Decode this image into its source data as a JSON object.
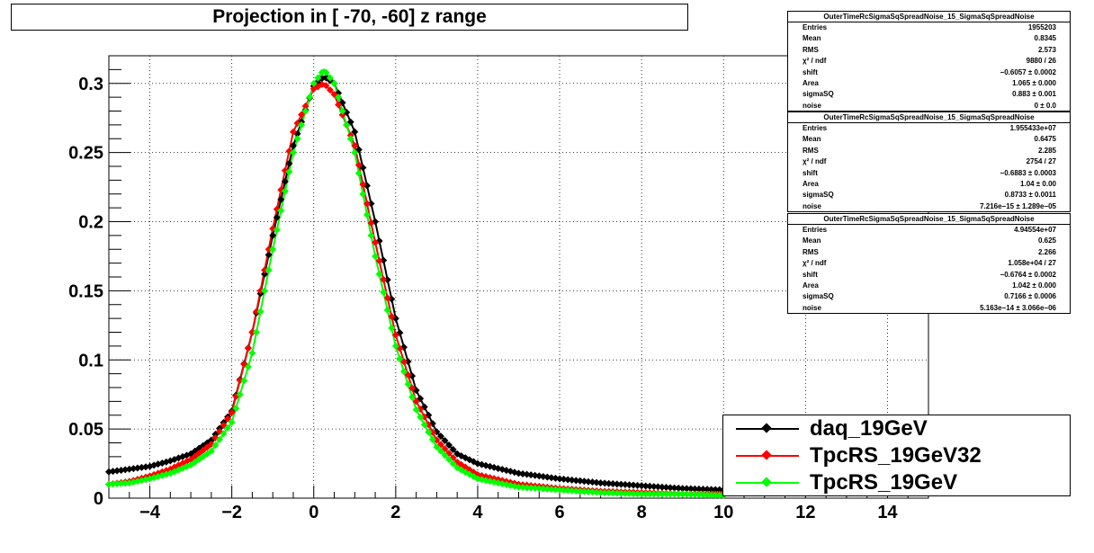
{
  "chart_data": {
    "type": "scatter",
    "title": "Projection in [ -70, -60] z range",
    "xlim": [
      -5,
      15
    ],
    "ylim": [
      0,
      0.32
    ],
    "x_ticks": [
      "−4",
      "−2",
      "0",
      "2",
      "4",
      "6",
      "8",
      "10",
      "12",
      "14"
    ],
    "y_ticks": [
      "0",
      "0.05",
      "0.1",
      "0.15",
      "0.2",
      "0.25",
      "0.3"
    ],
    "grid": true,
    "legend_position": "bottom-right",
    "series": [
      {
        "name": "daq_19GeV",
        "color": "#000000",
        "x": [
          -5.0,
          -4.5,
          -4.0,
          -3.5,
          -3.0,
          -2.5,
          -2.0,
          -1.5,
          -1.0,
          -0.5,
          0.0,
          0.25,
          0.5,
          1.0,
          1.5,
          2.0,
          2.5,
          3.0,
          3.5,
          4.0,
          5.0,
          6.0,
          7.0,
          8.0,
          9.0,
          10.0
        ],
        "y": [
          0.019,
          0.021,
          0.023,
          0.027,
          0.032,
          0.042,
          0.063,
          0.12,
          0.19,
          0.255,
          0.298,
          0.305,
          0.3,
          0.265,
          0.2,
          0.13,
          0.078,
          0.048,
          0.032,
          0.025,
          0.018,
          0.014,
          0.011,
          0.009,
          0.007,
          0.006
        ]
      },
      {
        "name": "TpcRS_19GeV32",
        "color": "#ff0000",
        "x": [
          -5.0,
          -4.5,
          -4.0,
          -3.5,
          -3.0,
          -2.5,
          -2.0,
          -1.5,
          -1.0,
          -0.5,
          0.0,
          0.25,
          0.5,
          1.0,
          1.5,
          2.0,
          2.5,
          3.0,
          3.5,
          4.0,
          5.0,
          6.0,
          7.0,
          8.0,
          9.0,
          10.0
        ],
        "y": [
          0.01,
          0.012,
          0.016,
          0.021,
          0.028,
          0.039,
          0.062,
          0.12,
          0.195,
          0.265,
          0.296,
          0.3,
          0.292,
          0.255,
          0.185,
          0.118,
          0.07,
          0.042,
          0.026,
          0.017,
          0.01,
          0.007,
          0.005,
          0.004,
          0.003,
          0.003
        ]
      },
      {
        "name": "TpcRS_19GeV",
        "color": "#00ff00",
        "x": [
          -5.0,
          -4.5,
          -4.0,
          -3.5,
          -3.0,
          -2.5,
          -2.0,
          -1.5,
          -1.0,
          -0.5,
          0.0,
          0.25,
          0.5,
          1.0,
          1.5,
          2.0,
          2.5,
          3.0,
          3.5,
          4.0,
          5.0,
          6.0,
          7.0,
          8.0,
          9.0,
          10.0
        ],
        "y": [
          0.01,
          0.011,
          0.014,
          0.018,
          0.024,
          0.034,
          0.055,
          0.105,
          0.18,
          0.25,
          0.3,
          0.31,
          0.3,
          0.25,
          0.175,
          0.11,
          0.064,
          0.037,
          0.022,
          0.014,
          0.008,
          0.006,
          0.004,
          0.003,
          0.003,
          0.002
        ]
      }
    ]
  },
  "stat_boxes": [
    {
      "title": "OuterTimeRcSigmaSqSpreadNoise_15_SigmaSqSpreadNoise",
      "rows": [
        {
          "label": "Entries",
          "value": "1955203"
        },
        {
          "label": "Mean",
          "value": "0.8345"
        },
        {
          "label": "RMS",
          "value": "2.573"
        },
        {
          "label": "χ² / ndf",
          "value": "9880 / 26"
        },
        {
          "label": "shift",
          "value": "−0.6057 ± 0.0002"
        },
        {
          "label": "Area",
          "value": "1.065 ± 0.000"
        },
        {
          "label": "sigmaSQ",
          "value": "0.883 ± 0.001"
        },
        {
          "label": "noise",
          "value": "0 ± 0.0"
        }
      ]
    },
    {
      "title": "OuterTimeRcSigmaSqSpreadNoise_15_SigmaSqSpreadNoise",
      "rows": [
        {
          "label": "Entries",
          "value": "1.955433e+07"
        },
        {
          "label": "Mean",
          "value": "0.6475"
        },
        {
          "label": "RMS",
          "value": "2.285"
        },
        {
          "label": "χ² / ndf",
          "value": "2754 / 27"
        },
        {
          "label": "shift",
          "value": "−0.6883 ± 0.0003"
        },
        {
          "label": "Area",
          "value": "1.04 ± 0.00"
        },
        {
          "label": "sigmaSQ",
          "value": "0.8733 ± 0.0011"
        },
        {
          "label": "noise",
          "value": "7.216e−15 ± 1.289e−05"
        }
      ]
    },
    {
      "title": "OuterTimeRcSigmaSqSpreadNoise_15_SigmaSqSpreadNoise",
      "rows": [
        {
          "label": "Entries",
          "value": "4.94554e+07"
        },
        {
          "label": "Mean",
          "value": "0.625"
        },
        {
          "label": "RMS",
          "value": "2.266"
        },
        {
          "label": "χ² / ndf",
          "value": "1.058e+04 / 27"
        },
        {
          "label": "shift",
          "value": "−0.6764 ± 0.0002"
        },
        {
          "label": "Area",
          "value": "1.042 ± 0.000"
        },
        {
          "label": "sigmaSQ",
          "value": "0.7166 ± 0.0006"
        },
        {
          "label": "noise",
          "value": "5.163e−14 ± 3.066e−06"
        }
      ]
    }
  ],
  "legend": [
    {
      "label": "daq_19GeV",
      "color": "#000000"
    },
    {
      "label": "TpcRS_19GeV32",
      "color": "#ff0000"
    },
    {
      "label": "TpcRS_19GeV",
      "color": "#00ff00"
    }
  ]
}
